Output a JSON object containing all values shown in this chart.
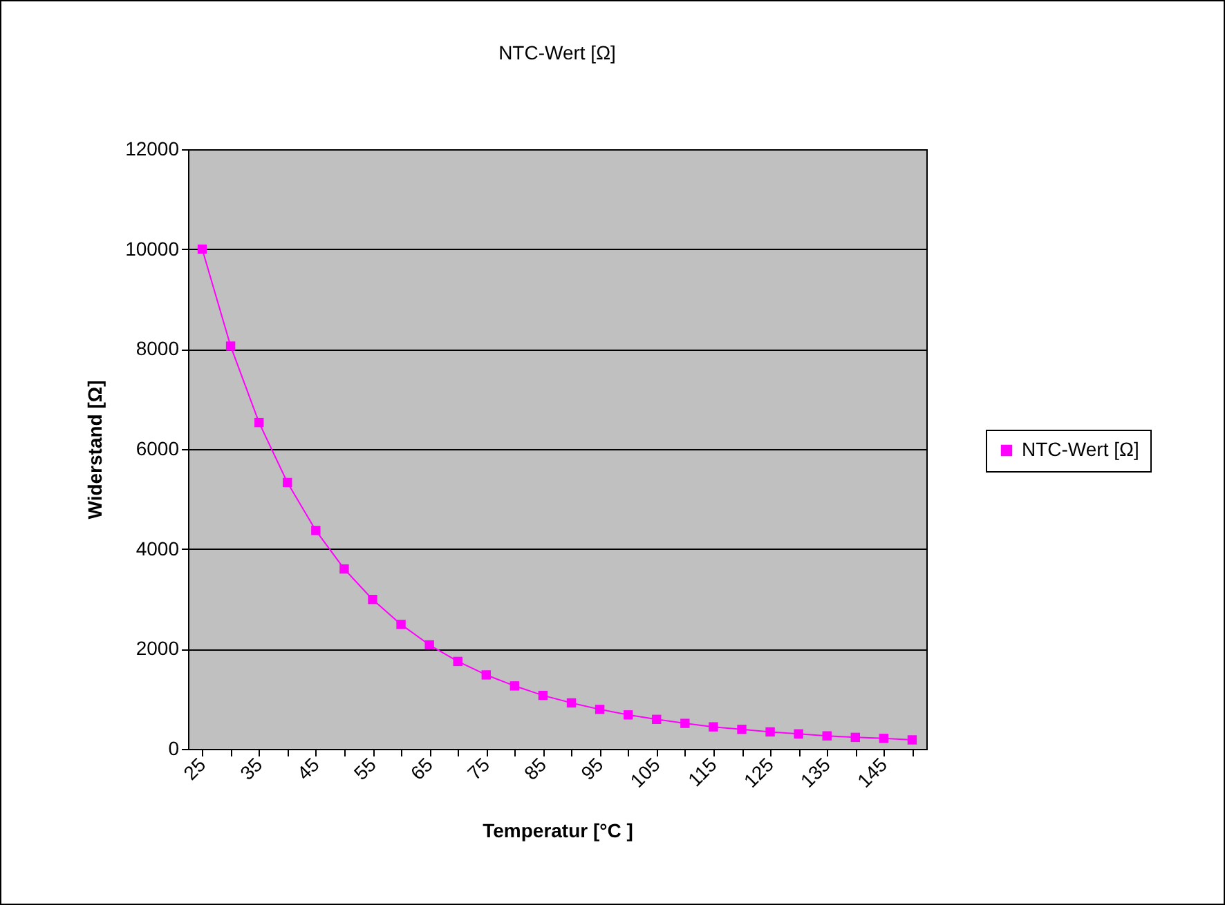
{
  "chart_data": {
    "type": "line",
    "title": "NTC-Wert [Ω]",
    "xlabel": "Temperatur [°C ]",
    "ylabel": "Widerstand [Ω]",
    "categories": [
      "25",
      null,
      "35",
      null,
      "45",
      null,
      "55",
      null,
      "65",
      null,
      "75",
      null,
      "85",
      null,
      "95",
      null,
      "105",
      null,
      "115",
      null,
      "125",
      null,
      "135",
      null,
      "145",
      null
    ],
    "series": [
      {
        "name": "NTC-Wert [Ω]",
        "color": "#ff00ff",
        "values": [
          10000,
          8060,
          6530,
          5330,
          4370,
          3600,
          2990,
          2490,
          2080,
          1750,
          1480,
          1260,
          1070,
          920,
          790,
          680,
          590,
          510,
          440,
          390,
          340,
          300,
          260,
          230,
          210,
          180
        ]
      }
    ],
    "ylim": [
      0,
      12000
    ],
    "yticks": [
      0,
      2000,
      4000,
      6000,
      8000,
      10000,
      12000
    ],
    "grid": "y",
    "legend": "right",
    "marker": "square",
    "line_style": "solid"
  }
}
